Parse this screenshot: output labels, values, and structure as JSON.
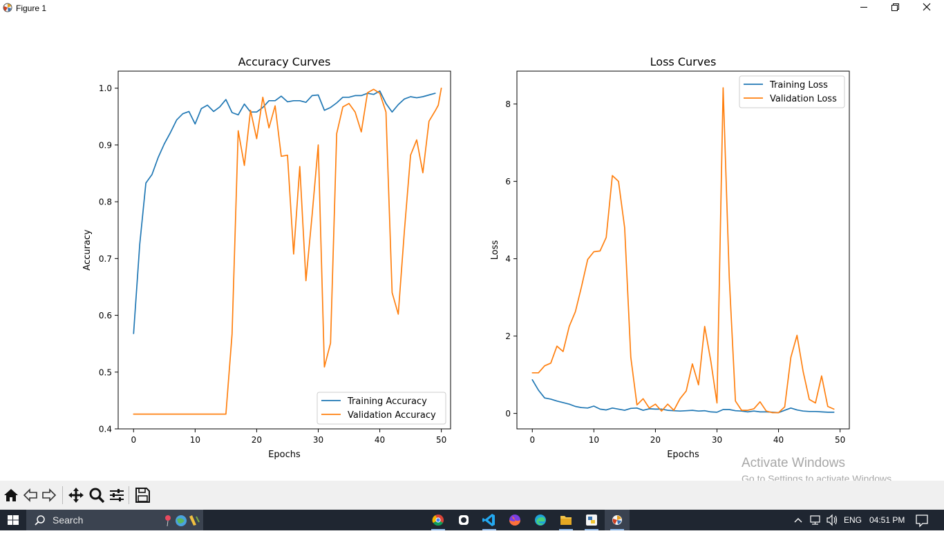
{
  "window": {
    "title": "Figure 1"
  },
  "icons": {
    "app": "matplotlib-icon",
    "minimize": "minimize-icon",
    "maximize": "restore-icon",
    "close": "close-icon"
  },
  "toolbar": {
    "buttons": [
      "home-icon",
      "back-arrow-icon",
      "forward-arrow-icon",
      "pan-icon",
      "zoom-icon",
      "subplots-config-icon",
      "save-icon"
    ]
  },
  "watermark": {
    "line1": "Activate Windows",
    "line2": "Go to Settings to activate Windows."
  },
  "taskbar": {
    "search_label": "Search",
    "apps": [
      "chrome-icon",
      "app-icon",
      "vscode-icon",
      "firefox-icon",
      "edge-icon",
      "file-explorer-icon",
      "python-icon",
      "matplotlib-figure-icon"
    ],
    "language": "ENG",
    "time": "04:51 PM"
  },
  "colors": {
    "train": "#1f77b4",
    "val": "#ff7f0e",
    "taskbar": "#1f2631"
  },
  "chart_data": [
    {
      "type": "line",
      "title": "Accuracy Curves",
      "xlabel": "Epochs",
      "ylabel": "Accuracy",
      "xlim": [
        -2.5,
        51.5
      ],
      "ylim": [
        0.4,
        1.03
      ],
      "xticks": [
        0,
        10,
        20,
        30,
        40,
        50
      ],
      "yticks": [
        0.4,
        0.5,
        0.6,
        0.7,
        0.8,
        0.9,
        1.0
      ],
      "ytick_labels": [
        "0.4",
        "0.5",
        "0.6",
        "0.7",
        "0.8",
        "0.9",
        "1.0"
      ],
      "legend": "lower-right",
      "grid": false,
      "series": [
        {
          "name": "Training Accuracy",
          "color": "#1f77b4",
          "x": [
            0,
            1,
            2,
            3,
            4,
            5,
            6,
            7,
            8,
            9,
            10,
            11,
            12,
            13,
            14,
            15,
            16,
            17,
            18,
            19,
            20,
            21,
            22,
            23,
            24,
            25,
            26,
            27,
            28,
            29,
            30,
            31,
            32,
            33,
            34,
            35,
            36,
            37,
            38,
            39,
            40,
            41,
            42,
            43,
            44,
            45,
            46,
            47,
            48,
            49
          ],
          "y": [
            0.568,
            0.725,
            0.833,
            0.848,
            0.878,
            0.902,
            0.922,
            0.944,
            0.955,
            0.959,
            0.937,
            0.964,
            0.97,
            0.959,
            0.967,
            0.98,
            0.957,
            0.953,
            0.972,
            0.958,
            0.958,
            0.966,
            0.978,
            0.978,
            0.986,
            0.976,
            0.978,
            0.978,
            0.975,
            0.987,
            0.988,
            0.961,
            0.966,
            0.974,
            0.984,
            0.984,
            0.987,
            0.987,
            0.991,
            0.989,
            0.995,
            0.973,
            0.958,
            0.971,
            0.981,
            0.985,
            0.983,
            0.985,
            0.988,
            0.991
          ]
        },
        {
          "name": "Validation Accuracy",
          "color": "#ff7f0e",
          "x": [
            0,
            1,
            2,
            3,
            4,
            5,
            6,
            7,
            8,
            9,
            10,
            11,
            12,
            13,
            14,
            15,
            16,
            17,
            18,
            19,
            20,
            21,
            22,
            23,
            24,
            25,
            26,
            27,
            28,
            29,
            30,
            31,
            32,
            33,
            34,
            35,
            36,
            37,
            38,
            39,
            40,
            41,
            42,
            43,
            44,
            45,
            46,
            47,
            48,
            49,
            49.5,
            50
          ],
          "y": [
            0.426,
            0.426,
            0.426,
            0.426,
            0.426,
            0.426,
            0.426,
            0.426,
            0.426,
            0.426,
            0.426,
            0.426,
            0.426,
            0.426,
            0.426,
            0.426,
            0.567,
            0.925,
            0.864,
            0.961,
            0.911,
            0.984,
            0.93,
            0.969,
            0.88,
            0.882,
            0.708,
            0.862,
            0.661,
            0.776,
            0.9,
            0.509,
            0.551,
            0.92,
            0.967,
            0.973,
            0.958,
            0.923,
            0.992,
            0.998,
            0.991,
            0.958,
            0.64,
            0.602,
            0.749,
            0.882,
            0.909,
            0.851,
            0.942,
            0.96,
            0.97,
            1.0
          ]
        }
      ]
    },
    {
      "type": "line",
      "title": "Loss Curves",
      "xlabel": "Epochs",
      "ylabel": "Loss",
      "xlim": [
        -2.5,
        51.5
      ],
      "ylim": [
        -0.4,
        8.85
      ],
      "xticks": [
        0,
        10,
        20,
        30,
        40,
        50
      ],
      "yticks": [
        0,
        2,
        4,
        6,
        8
      ],
      "ytick_labels": [
        "0",
        "2",
        "4",
        "6",
        "8"
      ],
      "legend": "upper-right",
      "grid": false,
      "series": [
        {
          "name": "Training Loss",
          "color": "#1f77b4",
          "x": [
            0,
            1,
            2,
            3,
            4,
            5,
            6,
            7,
            8,
            9,
            10,
            11,
            12,
            13,
            14,
            15,
            16,
            17,
            18,
            19,
            20,
            21,
            22,
            23,
            24,
            25,
            26,
            27,
            28,
            29,
            30,
            31,
            32,
            33,
            34,
            35,
            36,
            37,
            38,
            39,
            40,
            41,
            42,
            43,
            44,
            45,
            46,
            47,
            48,
            49
          ],
          "y": [
            0.87,
            0.6,
            0.4,
            0.37,
            0.32,
            0.28,
            0.24,
            0.18,
            0.15,
            0.14,
            0.19,
            0.11,
            0.09,
            0.14,
            0.11,
            0.08,
            0.13,
            0.14,
            0.08,
            0.12,
            0.11,
            0.11,
            0.08,
            0.07,
            0.06,
            0.07,
            0.08,
            0.06,
            0.07,
            0.04,
            0.03,
            0.1,
            0.1,
            0.07,
            0.06,
            0.04,
            0.06,
            0.04,
            0.04,
            0.03,
            0.02,
            0.08,
            0.14,
            0.09,
            0.06,
            0.05,
            0.05,
            0.04,
            0.03,
            0.03
          ]
        },
        {
          "name": "Validation Loss",
          "color": "#ff7f0e",
          "x": [
            0,
            1,
            2,
            3,
            4,
            5,
            6,
            7,
            8,
            9,
            10,
            11,
            12,
            13,
            14,
            15,
            16,
            17,
            18,
            19,
            20,
            21,
            22,
            23,
            24,
            25,
            26,
            27,
            28,
            29,
            30,
            31,
            32,
            33,
            34,
            35,
            36,
            37,
            38,
            39,
            40,
            41,
            42,
            43,
            44,
            45,
            46,
            47,
            48,
            49
          ],
          "y": [
            1.05,
            1.05,
            1.23,
            1.3,
            1.74,
            1.6,
            2.25,
            2.63,
            3.28,
            3.98,
            4.18,
            4.2,
            4.55,
            6.15,
            6.0,
            4.8,
            1.45,
            0.22,
            0.38,
            0.14,
            0.24,
            0.06,
            0.24,
            0.08,
            0.38,
            0.58,
            1.28,
            0.74,
            2.25,
            1.35,
            0.27,
            8.42,
            3.5,
            0.32,
            0.08,
            0.08,
            0.12,
            0.3,
            0.06,
            0.02,
            0.02,
            0.17,
            1.45,
            2.02,
            1.08,
            0.36,
            0.27,
            0.97,
            0.18,
            0.11
          ]
        }
      ]
    }
  ]
}
